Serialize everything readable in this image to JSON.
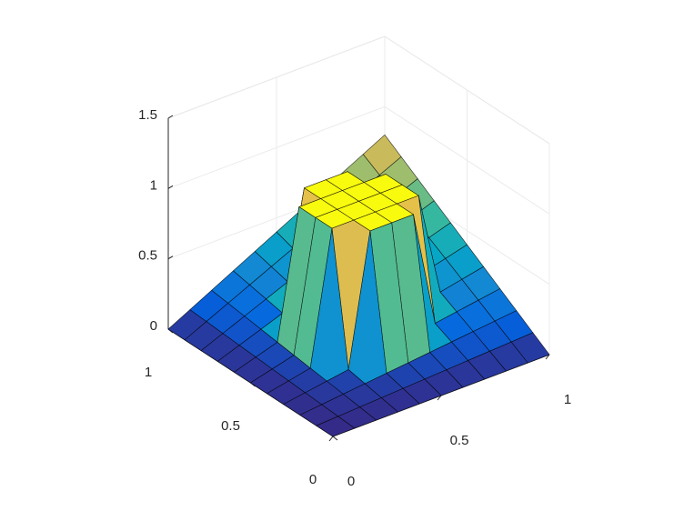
{
  "chart_data": {
    "type": "surface",
    "x": [
      0,
      0.1,
      0.2,
      0.3,
      0.4,
      0.5,
      0.6,
      0.7,
      0.8,
      0.9,
      1
    ],
    "y": [
      0,
      0.1,
      0.2,
      0.3,
      0.4,
      0.5,
      0.6,
      0.7,
      0.8,
      0.9,
      1
    ],
    "z": [
      [
        0,
        0,
        0,
        0,
        0,
        0,
        0,
        0,
        0,
        0,
        0
      ],
      [
        0,
        0.008,
        0.016,
        0.024,
        0.032,
        0.04,
        0.048,
        0.056,
        0.064,
        0.072,
        0.08
      ],
      [
        0,
        0.016,
        0.032,
        0.048,
        0.064,
        0.08,
        0.096,
        0.112,
        0.128,
        0.144,
        0.16
      ],
      [
        0,
        0.024,
        0.048,
        0.072,
        1,
        1,
        1,
        0.168,
        0.192,
        0.216,
        0.24
      ],
      [
        0,
        0.032,
        0.064,
        1,
        1,
        1,
        1,
        1,
        0.256,
        0.288,
        0.32
      ],
      [
        0,
        0.04,
        0.08,
        1,
        1,
        1,
        1,
        1,
        0.32,
        0.36,
        0.4
      ],
      [
        0,
        0.048,
        0.096,
        1,
        1,
        1,
        1,
        1,
        0.384,
        0.432,
        0.48
      ],
      [
        0,
        0.056,
        0.112,
        0.168,
        1,
        1,
        1,
        0.392,
        0.448,
        0.504,
        0.56
      ],
      [
        0,
        0.064,
        0.128,
        0.192,
        0.256,
        0.32,
        0.384,
        0.448,
        0.512,
        0.576,
        0.64
      ],
      [
        0,
        0.072,
        0.144,
        0.216,
        0.288,
        0.36,
        0.432,
        0.504,
        0.576,
        0.648,
        0.72
      ],
      [
        0,
        0.08,
        0.16,
        0.24,
        0.32,
        0.4,
        0.48,
        0.56,
        0.64,
        0.72,
        0.8
      ]
    ],
    "xlim": [
      0,
      1
    ],
    "ylim": [
      0,
      1
    ],
    "zlim": [
      0,
      1.5
    ],
    "xticks": [
      0,
      0.5,
      1
    ],
    "yticks": [
      0,
      0.5,
      1
    ],
    "zticks": [
      0,
      0.5,
      1,
      1.5
    ],
    "clim": [
      0,
      1
    ],
    "colormap": [
      "#352a87",
      "#0363e1",
      "#1485d4",
      "#06a7c6",
      "#38b99e",
      "#92bf73",
      "#d9ba56",
      "#fcce2e",
      "#f9fb0e"
    ],
    "edgecolor": "#000000",
    "grid": true
  }
}
